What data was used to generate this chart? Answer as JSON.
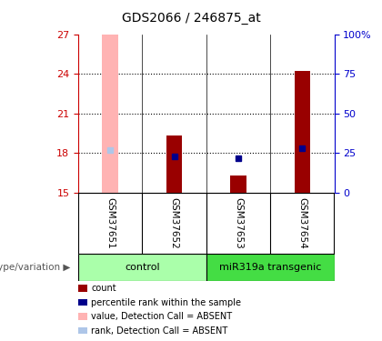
{
  "title": "GDS2066 / 246875_at",
  "samples": [
    "GSM37651",
    "GSM37652",
    "GSM37653",
    "GSM37654"
  ],
  "ylim_left": [
    15,
    27
  ],
  "ylim_right": [
    0,
    100
  ],
  "yticks_left": [
    15,
    18,
    21,
    24,
    27
  ],
  "yticks_right": [
    0,
    25,
    50,
    75,
    100
  ],
  "bars": {
    "GSM37651": {
      "value_bar": [
        15,
        27
      ],
      "rank_marker": 18.2,
      "bar_color": "#ffb3b3",
      "rank_color": "#aec6e8",
      "absent": true
    },
    "GSM37652": {
      "value_bar": [
        15,
        19.3
      ],
      "rank_marker": 17.75,
      "bar_color": "#990000",
      "rank_color": "#00008b",
      "absent": false
    },
    "GSM37653": {
      "value_bar": [
        15,
        16.3
      ],
      "rank_marker": 17.6,
      "bar_color": "#990000",
      "rank_color": "#00008b",
      "absent": false
    },
    "GSM37654": {
      "value_bar": [
        15,
        24.2
      ],
      "rank_marker": 18.35,
      "bar_color": "#990000",
      "rank_color": "#00008b",
      "absent": false
    }
  },
  "groups": [
    {
      "label": "control",
      "indices": [
        0,
        1
      ],
      "color": "#aaffaa"
    },
    {
      "label": "miR319a transgenic",
      "indices": [
        2,
        3
      ],
      "color": "#44dd44"
    }
  ],
  "legend": [
    {
      "label": "count",
      "color": "#990000"
    },
    {
      "label": "percentile rank within the sample",
      "color": "#00008b"
    },
    {
      "label": "value, Detection Call = ABSENT",
      "color": "#ffb3b3"
    },
    {
      "label": "rank, Detection Call = ABSENT",
      "color": "#aec6e8"
    }
  ],
  "title_color": "#000000",
  "left_axis_color": "#cc0000",
  "right_axis_color": "#0000cc",
  "bar_width": 0.25,
  "sample_label_bg": "#cccccc",
  "plot_bg": "#ffffff",
  "genotype_label": "genotype/variation"
}
